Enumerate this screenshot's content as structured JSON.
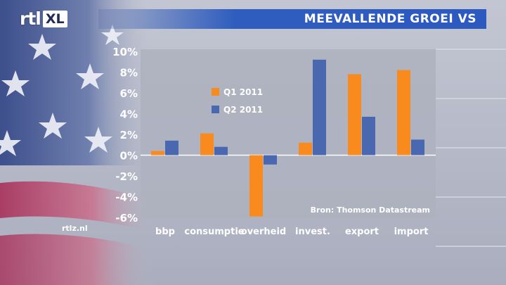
{
  "header": {
    "logo_rtl": "rtl",
    "logo_xl": "XL",
    "title": "MEEVALLENDE GROEI VS"
  },
  "footer": {
    "website": "rtlz.nl"
  },
  "colors": {
    "q1": "#f98a1e",
    "q2": "#4a68b0",
    "title_bar": "#2f5dbf",
    "plot_bg": "#aeb1bf"
  },
  "chart_data": {
    "type": "bar",
    "title": "MEEVALLENDE GROEI VS",
    "categories": [
      "bbp",
      "consumptie",
      "overheid",
      "invest.",
      "export",
      "import"
    ],
    "series": [
      {
        "name": "Q1 2011",
        "values": [
          0.4,
          2.1,
          -5.9,
          1.2,
          7.8,
          8.2
        ]
      },
      {
        "name": "Q2 2011",
        "values": [
          1.4,
          0.8,
          -0.9,
          9.2,
          3.7,
          1.5
        ]
      }
    ],
    "ylim": [
      -6,
      10
    ],
    "yticks": [
      "-6%",
      "-4%",
      "-2%",
      "0%",
      "2%",
      "4%",
      "6%",
      "8%",
      "10%"
    ],
    "ytick_values": [
      -6,
      -4,
      -2,
      0,
      2,
      4,
      6,
      8,
      10
    ],
    "grid": false,
    "legend_position": "top-left",
    "source_note": "Bron: Thomson Datastream"
  }
}
